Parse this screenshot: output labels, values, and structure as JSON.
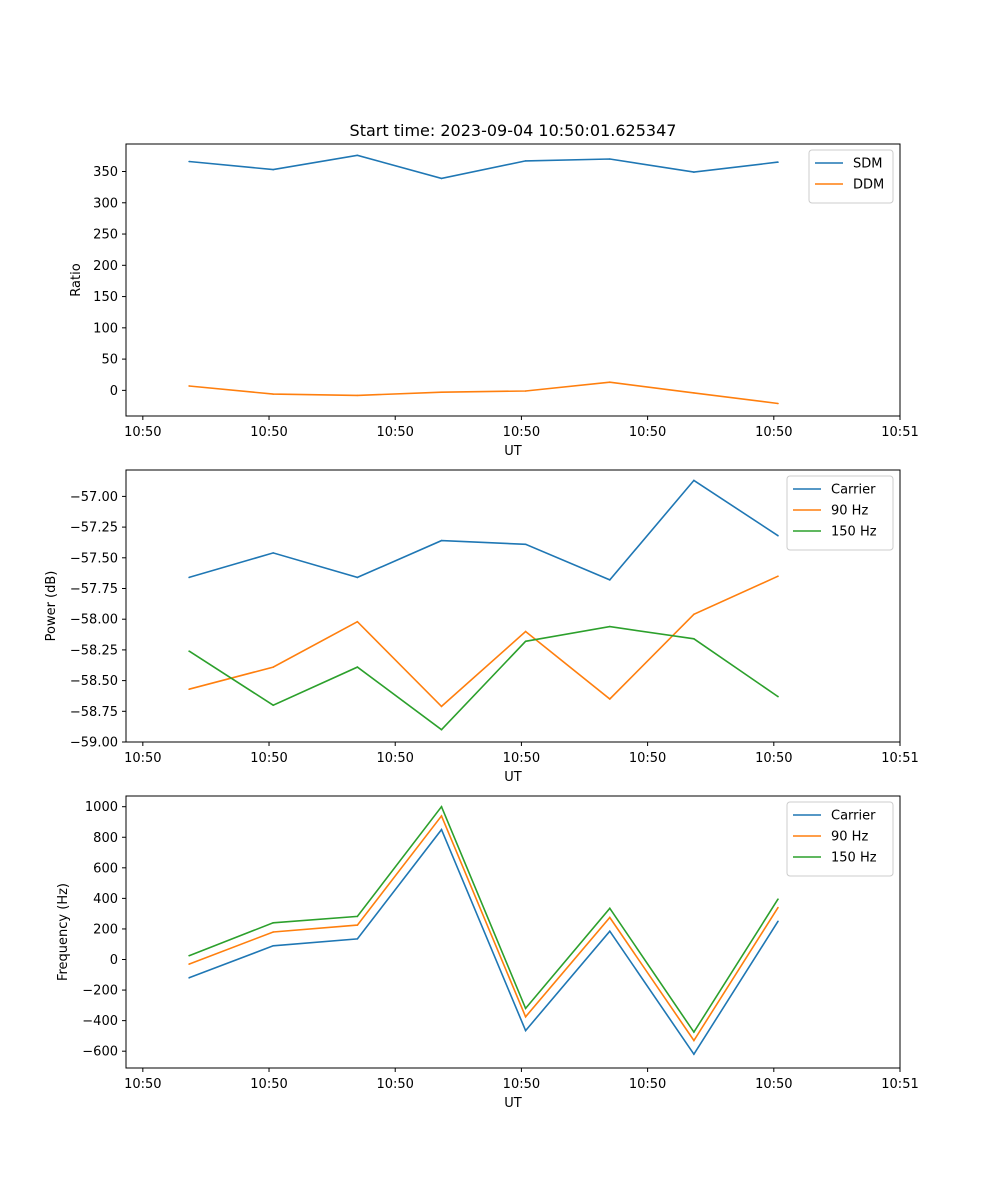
{
  "chart_data": [
    {
      "type": "line",
      "title": "Start time: 2023-09-04 10:50:01.625347",
      "xlabel": "UT",
      "ylabel": "Ratio",
      "xlim": [
        0,
        9.2
      ],
      "x": [
        0.75,
        1.75,
        2.75,
        3.75,
        4.75,
        5.75,
        6.75,
        7.75
      ],
      "x_ticks": [
        0.2,
        1.7,
        3.2,
        4.7,
        6.2,
        7.7,
        9.2
      ],
      "x_tick_labels": [
        "10:50",
        "10:50",
        "10:50",
        "10:50",
        "10:50",
        "10:50",
        "10:51"
      ],
      "ylim": [
        -41,
        394
      ],
      "y_ticks": [
        0,
        50,
        100,
        150,
        200,
        250,
        300,
        350
      ],
      "y_tick_labels": [
        "0",
        "50",
        "100",
        "150",
        "200",
        "250",
        "300",
        "350"
      ],
      "legend_position": "top-right",
      "series": [
        {
          "name": "SDM",
          "color": "#1f77b4",
          "values": [
            366,
            353,
            376,
            339,
            367,
            370,
            349,
            365
          ]
        },
        {
          "name": "DDM",
          "color": "#ff7f0e",
          "values": [
            7,
            -6,
            -8,
            -3,
            -1,
            13,
            -4,
            -21
          ]
        }
      ]
    },
    {
      "type": "line",
      "title": "",
      "xlabel": "UT",
      "ylabel": "Power (dB)",
      "xlim": [
        0,
        9.2
      ],
      "x": [
        0.75,
        1.75,
        2.75,
        3.75,
        4.75,
        5.75,
        6.75,
        7.75
      ],
      "x_ticks": [
        0.2,
        1.7,
        3.2,
        4.7,
        6.2,
        7.7,
        9.2
      ],
      "x_tick_labels": [
        "10:50",
        "10:50",
        "10:50",
        "10:50",
        "10:50",
        "10:50",
        "10:51"
      ],
      "ylim": [
        -59.0,
        -56.785
      ],
      "y_ticks": [
        -59.0,
        -58.75,
        -58.5,
        -58.25,
        -58.0,
        -57.75,
        -57.5,
        -57.25,
        -57.0
      ],
      "y_tick_labels": [
        "−59.00",
        "−58.75",
        "−58.50",
        "−58.25",
        "−58.00",
        "−57.75",
        "−57.50",
        "−57.25",
        "−57.00"
      ],
      "legend_position": "top-right",
      "series": [
        {
          "name": "Carrier",
          "color": "#1f77b4",
          "values": [
            -57.66,
            -57.46,
            -57.66,
            -57.36,
            -57.39,
            -57.68,
            -56.87,
            -57.32
          ]
        },
        {
          "name": "90 Hz",
          "color": "#ff7f0e",
          "values": [
            -58.57,
            -58.39,
            -58.02,
            -58.71,
            -58.1,
            -58.65,
            -57.96,
            -57.65
          ]
        },
        {
          "name": "150 Hz",
          "color": "#2ca02c",
          "values": [
            -58.26,
            -58.7,
            -58.39,
            -58.9,
            -58.18,
            -58.06,
            -58.16,
            -58.63
          ]
        }
      ]
    },
    {
      "type": "line",
      "title": "",
      "xlabel": "UT",
      "ylabel": "Frequency (Hz)",
      "xlim": [
        0,
        9.2
      ],
      "x": [
        0.75,
        1.75,
        2.75,
        3.75,
        4.75,
        5.75,
        6.75,
        7.75
      ],
      "x_ticks": [
        0.2,
        1.7,
        3.2,
        4.7,
        6.2,
        7.7,
        9.2
      ],
      "x_tick_labels": [
        "10:50",
        "10:50",
        "10:50",
        "10:50",
        "10:50",
        "10:50",
        "10:51"
      ],
      "ylim": [
        -710,
        1070
      ],
      "y_ticks": [
        -600,
        -400,
        -200,
        0,
        200,
        400,
        600,
        800,
        1000
      ],
      "y_tick_labels": [
        "−600",
        "−400",
        "−200",
        "0",
        "200",
        "400",
        "600",
        "800",
        "1000"
      ],
      "legend_position": "top-right",
      "series": [
        {
          "name": "Carrier",
          "color": "#1f77b4",
          "values": [
            -120,
            90,
            135,
            850,
            -465,
            185,
            -620,
            250
          ]
        },
        {
          "name": "90 Hz",
          "color": "#ff7f0e",
          "values": [
            -30,
            180,
            225,
            940,
            -375,
            275,
            -530,
            340
          ]
        },
        {
          "name": "150 Hz",
          "color": "#2ca02c",
          "values": [
            25,
            240,
            282,
            1000,
            -320,
            335,
            -475,
            395
          ]
        }
      ]
    }
  ]
}
